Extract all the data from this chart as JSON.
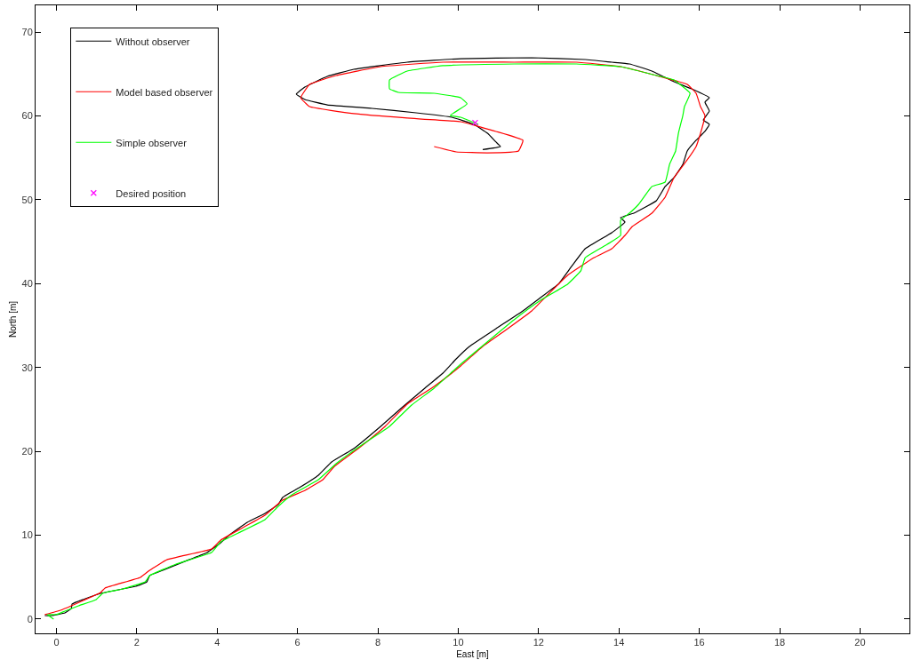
{
  "chart_data": {
    "type": "line",
    "xlabel": "East [m]",
    "ylabel": "North [m]",
    "xlim": [
      -0.52,
      21.23
    ],
    "ylim": [
      -1.7,
      73.2
    ],
    "xticks": [
      0,
      2,
      4,
      6,
      8,
      10,
      12,
      14,
      16,
      18,
      20
    ],
    "yticks": [
      0,
      10,
      20,
      30,
      40,
      50,
      60,
      70
    ],
    "legend": "top left",
    "line_style": "solid",
    "series": [
      {
        "name": "Without observer",
        "color": "#000000",
        "x": [
          -0.29,
          -0.12,
          0.21,
          0.37,
          0.39,
          0.66,
          1.1,
          1.65,
          1.98,
          2.25,
          2.32,
          2.65,
          3.31,
          3.75,
          4.09,
          4.31,
          4.75,
          5.19,
          5.52,
          5.63,
          6.08,
          6.52,
          6.85,
          7.4,
          8.07,
          8.62,
          9.17,
          9.62,
          9.95,
          10.28,
          10.94,
          11.61,
          12.05,
          12.49,
          12.82,
          13.16,
          13.82,
          14.15,
          14.04,
          14.37,
          14.93,
          15.15,
          15.37,
          15.59,
          15.7,
          15.92,
          16.14,
          16.25,
          16.1,
          16.25,
          16.14,
          16.25,
          15.81,
          15.37,
          14.82,
          14.26,
          13.82,
          13.16,
          11.83,
          10.06,
          8.73,
          7.4,
          6.74,
          6.18,
          5.97,
          6.18,
          6.74,
          7.85,
          8.95,
          9.84,
          10.39,
          10.73,
          10.94,
          11.05,
          10.61
        ],
        "values": [
          0.42,
          0.42,
          0.74,
          1.27,
          1.8,
          2.33,
          3.07,
          3.6,
          3.92,
          4.45,
          5.19,
          5.83,
          7.1,
          7.94,
          9.11,
          10.06,
          11.55,
          12.61,
          13.67,
          14.51,
          15.78,
          17.16,
          18.75,
          20.34,
          22.99,
          25.32,
          27.54,
          29.34,
          31.04,
          32.52,
          34.64,
          36.76,
          38.35,
          39.94,
          42.06,
          44.17,
          46.08,
          47.35,
          47.88,
          48.41,
          49.89,
          51.59,
          52.65,
          54.24,
          55.83,
          57.1,
          58.16,
          59.0,
          59.53,
          60.59,
          61.65,
          62.18,
          63.24,
          64.09,
          65.36,
          66.21,
          66.42,
          66.74,
          66.95,
          66.84,
          66.42,
          65.57,
          64.72,
          63.45,
          62.61,
          61.97,
          61.33,
          60.91,
          60.38,
          59.85,
          59.0,
          57.94,
          56.89,
          56.36,
          56.0
        ]
      },
      {
        "name": "Model based observer",
        "color": "#ff0000",
        "x": [
          -0.29,
          0.1,
          0.37,
          0.77,
          1.1,
          1.21,
          2.09,
          2.32,
          2.76,
          3.86,
          4.09,
          4.64,
          5.19,
          5.63,
          6.19,
          6.63,
          6.92,
          7.51,
          8.18,
          8.73,
          9.4,
          10.06,
          10.61,
          11.17,
          11.83,
          12.27,
          12.72,
          13.38,
          13.82,
          14.15,
          14.33,
          14.82,
          15.15,
          15.37,
          15.7,
          15.92,
          16.03,
          16.14,
          16.03,
          15.92,
          15.7,
          14.93,
          14.04,
          12.94,
          11.39,
          9.62,
          8.07,
          6.96,
          6.3,
          6.08,
          6.3,
          7.4,
          8.73,
          10.06,
          10.94,
          11.61,
          11.5,
          10.73,
          9.95,
          9.4
        ],
        "values": [
          0.53,
          1.06,
          1.59,
          2.44,
          3.18,
          3.71,
          4.98,
          5.83,
          7.1,
          8.37,
          9.43,
          10.91,
          12.39,
          14.19,
          15.36,
          16.63,
          18.22,
          20.34,
          22.99,
          25.64,
          27.75,
          30.19,
          32.52,
          34.43,
          36.76,
          38.88,
          41.0,
          43.11,
          44.17,
          45.76,
          46.82,
          48.41,
          50.32,
          52.65,
          54.77,
          56.36,
          57.94,
          60.06,
          61.12,
          62.71,
          63.77,
          64.83,
          65.89,
          66.42,
          66.42,
          66.42,
          65.89,
          64.83,
          63.77,
          62.18,
          61.12,
          60.28,
          59.75,
          59.32,
          58.16,
          57.1,
          55.83,
          55.61,
          55.72,
          56.36
        ]
      },
      {
        "name": "Simple observer",
        "color": "#00ff00",
        "x": [
          -0.07,
          -0.23,
          -0.01,
          0.21,
          0.55,
          0.99,
          1.15,
          1.65,
          2.21,
          2.32,
          2.98,
          3.86,
          4.09,
          4.53,
          5.19,
          5.52,
          5.86,
          6.52,
          6.96,
          7.63,
          8.29,
          8.84,
          9.4,
          10.06,
          10.72,
          11.39,
          12.05,
          12.72,
          13.05,
          13.16,
          13.71,
          14.04,
          14.04,
          14.26,
          14.49,
          14.82,
          15.15,
          15.26,
          15.41,
          15.48,
          15.59,
          15.63,
          15.77,
          15.37,
          14.93,
          14.04,
          12.94,
          11.39,
          9.62,
          8.73,
          8.29,
          8.29,
          8.51,
          9.4,
          10.06,
          10.22,
          9.8,
          10.06,
          10.39,
          10.5
        ],
        "values": [
          0.0,
          0.53,
          0.53,
          0.95,
          1.59,
          2.33,
          3.07,
          3.6,
          4.45,
          5.19,
          6.57,
          7.94,
          9.22,
          10.28,
          11.86,
          13.45,
          14.83,
          16.63,
          18.54,
          20.87,
          22.99,
          25.53,
          27.54,
          30.4,
          33.05,
          35.7,
          38.03,
          39.94,
          41.53,
          43.11,
          44.7,
          45.76,
          47.56,
          48.41,
          49.47,
          51.59,
          52.12,
          54.24,
          55.83,
          57.94,
          60.06,
          61.12,
          62.71,
          64.3,
          64.83,
          65.89,
          66.21,
          66.21,
          66.0,
          65.36,
          64.3,
          63.24,
          62.82,
          62.71,
          62.18,
          61.44,
          60.06,
          59.85,
          59.22,
          59.0
        ]
      },
      {
        "name": "Desired position",
        "color": "#ff00ff",
        "type": "scatter",
        "marker": "cross",
        "x": [
          10.42
        ],
        "values": [
          59.2
        ]
      }
    ]
  }
}
